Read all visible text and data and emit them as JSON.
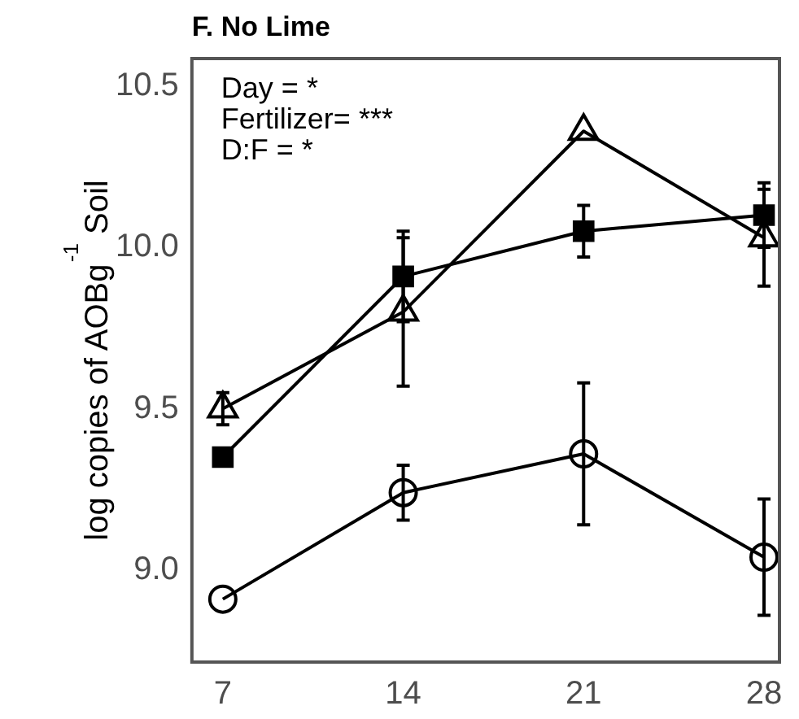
{
  "chart_data": {
    "type": "line",
    "title": "F. No Lime",
    "ylabel": "log copies of AOBg$^{-1}$ Soil",
    "x": [
      7,
      14,
      21,
      28
    ],
    "xlim": [
      5.8,
      28.6
    ],
    "xticks": [
      7,
      14,
      21,
      28
    ],
    "ylim": [
      8.715,
      10.585
    ],
    "yticks": [
      {
        "value": 9,
        "label": "9.0"
      },
      9.5,
      {
        "value": 10,
        "label": "10.0"
      },
      10.5
    ],
    "grid": false,
    "legend": false,
    "line_style": "solid",
    "annotations": [
      "Day = *",
      "Fertilizer= ***",
      "D:F = *"
    ],
    "series": [
      {
        "color": "#000000",
        "marker": "triangle",
        "values": [
          9.5,
          9.8,
          10.36,
          10.03
        ],
        "errors": [
          0.05,
          0.23,
          null,
          0.15
        ]
      },
      {
        "color": "#000000",
        "marker": "square",
        "values": [
          9.35,
          9.91,
          10.05,
          10.1
        ],
        "errors": [
          null,
          0.14,
          0.08,
          0.1
        ]
      },
      {
        "color": "#000000",
        "marker": "circle",
        "values": [
          8.91,
          9.24,
          9.36,
          9.04
        ],
        "errors": [
          null,
          0.085,
          0.22,
          0.18
        ]
      }
    ]
  }
}
